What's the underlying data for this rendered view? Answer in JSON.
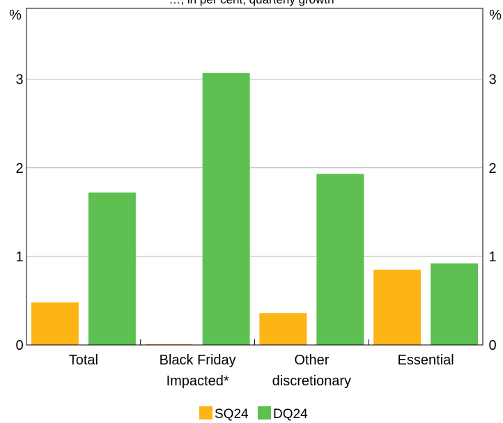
{
  "chart_data": {
    "type": "bar",
    "title": "…, in per cent; quarterly growth",
    "y_unit_left": "%",
    "y_unit_right": "%",
    "ylim": [
      0,
      3.8
    ],
    "yticks": [
      0,
      1,
      2,
      3
    ],
    "grid": true,
    "legend_position": "bottom",
    "categories": [
      [
        "Total"
      ],
      [
        "Black Friday",
        "Impacted*"
      ],
      [
        "Other",
        "discretionary"
      ],
      [
        "Essential"
      ]
    ],
    "series": [
      {
        "name": "SQ24",
        "color": "#FDB515",
        "values": [
          0.48,
          0.01,
          0.36,
          0.85
        ]
      },
      {
        "name": "DQ24",
        "color": "#5DC050",
        "values": [
          1.72,
          3.07,
          1.93,
          0.92
        ]
      }
    ]
  }
}
